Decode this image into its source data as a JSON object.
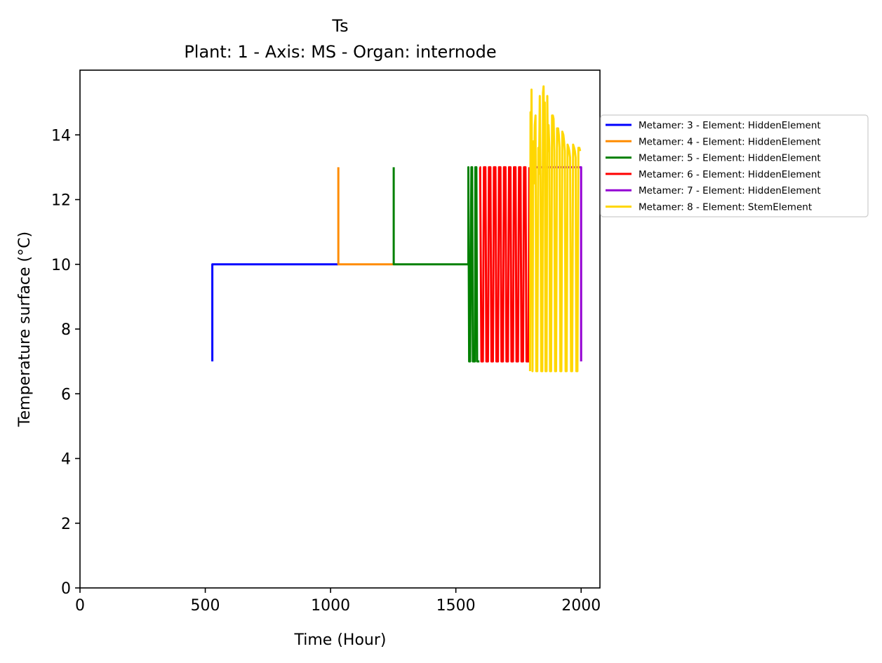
{
  "chart_data": {
    "type": "line",
    "title": "Ts",
    "subtitle": "Plant: 1 - Axis: MS - Organ: internode",
    "xlabel": "Time (Hour)",
    "ylabel": "Temperature surface (°C)",
    "xlim": [
      0,
      2075
    ],
    "ylim": [
      0,
      16
    ],
    "xticks": [
      0,
      500,
      1000,
      1500,
      2000
    ],
    "yticks": [
      0,
      2,
      4,
      6,
      8,
      10,
      12,
      14
    ],
    "grid": false,
    "legend_position": "right, outside plot area",
    "series": [
      {
        "name": "Metamer: 3 - Element: HiddenElement",
        "color": "#0000ff",
        "points": [
          [
            528,
            7.0
          ],
          [
            528,
            10.0
          ],
          [
            1030,
            10.0
          ]
        ]
      },
      {
        "name": "Metamer: 4 - Element: HiddenElement",
        "color": "#ff8c00",
        "points": [
          [
            1031,
            13.0
          ],
          [
            1031,
            10.0
          ],
          [
            1251,
            10.0
          ]
        ]
      },
      {
        "name": "Metamer: 5 - Element: HiddenElement",
        "color": "#008000",
        "points": [
          [
            1252,
            13.0
          ],
          [
            1252,
            10.0
          ],
          [
            1550,
            10.0
          ],
          [
            1550,
            13.0
          ],
          [
            1553,
            7.0
          ],
          [
            1557,
            7.0
          ],
          [
            1562,
            13.0
          ],
          [
            1565,
            13.0
          ],
          [
            1568,
            7.0
          ],
          [
            1576,
            7.0
          ],
          [
            1578,
            13.0
          ],
          [
            1582,
            13.0
          ],
          [
            1585,
            7.0
          ],
          [
            1594,
            7.0
          ]
        ]
      },
      {
        "name": "Metamer: 6 - Element: HiddenElement",
        "color": "#ff0000",
        "points": [
          [
            1595,
            13.0
          ],
          [
            1597,
            13.0
          ],
          [
            1602,
            7.0
          ],
          [
            1608,
            7.0
          ],
          [
            1612,
            13.0
          ],
          [
            1618,
            13.0
          ],
          [
            1622,
            7.0
          ],
          [
            1628,
            7.0
          ],
          [
            1632,
            13.0
          ],
          [
            1638,
            13.0
          ],
          [
            1642,
            7.0
          ],
          [
            1648,
            7.0
          ],
          [
            1652,
            13.0
          ],
          [
            1658,
            13.0
          ],
          [
            1662,
            7.0
          ],
          [
            1668,
            7.0
          ],
          [
            1672,
            13.0
          ],
          [
            1678,
            13.0
          ],
          [
            1682,
            7.0
          ],
          [
            1688,
            7.0
          ],
          [
            1692,
            13.0
          ],
          [
            1698,
            13.0
          ],
          [
            1702,
            7.0
          ],
          [
            1708,
            7.0
          ],
          [
            1712,
            13.0
          ],
          [
            1718,
            13.0
          ],
          [
            1722,
            7.0
          ],
          [
            1728,
            7.0
          ],
          [
            1732,
            13.0
          ],
          [
            1738,
            13.0
          ],
          [
            1742,
            7.0
          ],
          [
            1748,
            7.0
          ],
          [
            1752,
            13.0
          ],
          [
            1758,
            13.0
          ],
          [
            1762,
            7.0
          ],
          [
            1768,
            7.0
          ],
          [
            1772,
            13.0
          ],
          [
            1778,
            13.0
          ],
          [
            1782,
            7.0
          ],
          [
            1790,
            7.0
          ],
          [
            1793,
            13.0
          ]
        ]
      },
      {
        "name": "Metamer: 7 - Element: HiddenElement",
        "color": "#9400d3",
        "points": [
          [
            1794,
            13.0
          ],
          [
            2000,
            13.0
          ],
          [
            2000,
            7.0
          ]
        ]
      },
      {
        "name": "Metamer: 8 - Element: StemElement",
        "color": "#ffd700",
        "points": [
          [
            1796,
            6.7
          ],
          [
            1798,
            14.7
          ],
          [
            1800,
            12.0
          ],
          [
            1802,
            15.4
          ],
          [
            1804,
            12.2
          ],
          [
            1806,
            6.7
          ],
          [
            1809,
            13.8
          ],
          [
            1812,
            12.5
          ],
          [
            1815,
            14.3
          ],
          [
            1818,
            14.6
          ],
          [
            1821,
            6.7
          ],
          [
            1825,
            6.7
          ],
          [
            1829,
            13.6
          ],
          [
            1832,
            12.8
          ],
          [
            1835,
            15.2
          ],
          [
            1838,
            12.6
          ],
          [
            1841,
            6.7
          ],
          [
            1845,
            6.7
          ],
          [
            1848,
            15.3
          ],
          [
            1850,
            15.5
          ],
          [
            1852,
            13.8
          ],
          [
            1855,
            15.0
          ],
          [
            1858,
            6.7
          ],
          [
            1862,
            6.7
          ],
          [
            1865,
            15.2
          ],
          [
            1867,
            13.5
          ],
          [
            1870,
            14.3
          ],
          [
            1873,
            13.6
          ],
          [
            1876,
            6.7
          ],
          [
            1880,
            6.7
          ],
          [
            1884,
            14.6
          ],
          [
            1887,
            14.6
          ],
          [
            1890,
            14.5
          ],
          [
            1893,
            13.5
          ],
          [
            1896,
            6.7
          ],
          [
            1900,
            6.7
          ],
          [
            1904,
            14.2
          ],
          [
            1908,
            14.2
          ],
          [
            1911,
            14.0
          ],
          [
            1914,
            13.6
          ],
          [
            1917,
            6.7
          ],
          [
            1921,
            6.7
          ],
          [
            1925,
            14.1
          ],
          [
            1929,
            14.0
          ],
          [
            1932,
            13.8
          ],
          [
            1935,
            13.5
          ],
          [
            1938,
            6.7
          ],
          [
            1942,
            6.7
          ],
          [
            1946,
            13.7
          ],
          [
            1950,
            13.6
          ],
          [
            1953,
            13.5
          ],
          [
            1956,
            13.3
          ],
          [
            1960,
            6.7
          ],
          [
            1964,
            6.7
          ],
          [
            1968,
            13.7
          ],
          [
            1972,
            13.6
          ],
          [
            1975,
            13.5
          ],
          [
            1978,
            13.3
          ],
          [
            1981,
            6.7
          ],
          [
            1985,
            6.7
          ],
          [
            1989,
            13.6
          ],
          [
            1993,
            13.6
          ],
          [
            1996,
            13.5
          ]
        ]
      }
    ]
  }
}
